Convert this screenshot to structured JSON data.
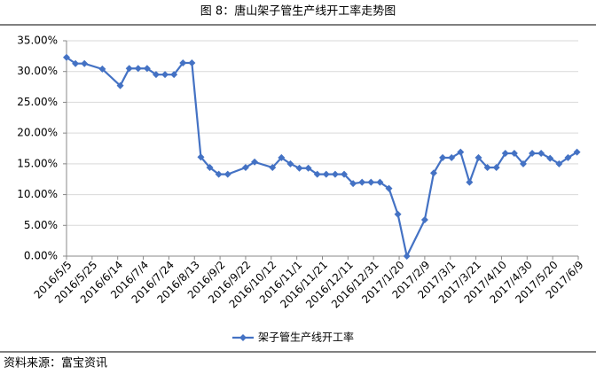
{
  "chart_data": {
    "type": "line",
    "title": "图 8：唐山架子管生产线开工率走势图",
    "source": "资料来源：富宝资讯",
    "x": [
      "2016/5/5",
      "2016/5/12",
      "2016/5/19",
      "2016/6/2",
      "2016/6/16",
      "2016/6/23",
      "2016/6/30",
      "2016/7/7",
      "2016/7/14",
      "2016/7/21",
      "2016/7/28",
      "2016/8/4",
      "2016/8/11",
      "2016/8/18",
      "2016/8/25",
      "2016/9/1",
      "2016/9/8",
      "2016/9/22",
      "2016/9/29",
      "2016/10/13",
      "2016/10/20",
      "2016/10/27",
      "2016/11/3",
      "2016/11/10",
      "2016/11/17",
      "2016/11/24",
      "2016/12/1",
      "2016/12/8",
      "2016/12/15",
      "2016/12/22",
      "2016/12/29",
      "2017/1/5",
      "2017/1/12",
      "2017/1/19",
      "2017/1/26",
      "2017/2/9",
      "2017/2/16",
      "2017/2/23",
      "2017/3/2",
      "2017/3/9",
      "2017/3/16",
      "2017/3/23",
      "2017/3/30",
      "2017/4/6",
      "2017/4/13",
      "2017/4/20",
      "2017/4/27",
      "2017/5/4",
      "2017/5/11",
      "2017/5/18",
      "2017/5/25",
      "2017/6/1",
      "2017/6/8"
    ],
    "series": [
      {
        "name": "架子管生产线开工率",
        "color": "#4472c4",
        "values": [
          32.3,
          31.3,
          31.3,
          30.4,
          27.7,
          30.5,
          30.5,
          30.5,
          29.5,
          29.5,
          29.5,
          31.4,
          31.4,
          16.1,
          14.4,
          13.3,
          13.3,
          14.4,
          15.3,
          14.4,
          16.0,
          15.0,
          14.3,
          14.3,
          13.3,
          13.3,
          13.3,
          13.3,
          11.8,
          12.0,
          12.0,
          12.0,
          11.0,
          6.8,
          0,
          5.9,
          13.5,
          16.0,
          16.0,
          16.9,
          12.0,
          16.0,
          14.4,
          14.4,
          16.7,
          16.7,
          15.0,
          16.7,
          16.7,
          15.9,
          15.0,
          16.0,
          16.9
        ]
      }
    ],
    "xlim": [
      "2016/5/5",
      "2017/6/9"
    ],
    "xticks": [
      "2016/5/5",
      "2016/5/25",
      "2016/6/14",
      "2016/7/4",
      "2016/7/24",
      "2016/8/13",
      "2016/9/2",
      "2016/9/22",
      "2016/10/12",
      "2016/11/1",
      "2016/11/21",
      "2016/12/11",
      "2016/12/31",
      "2017/1/20",
      "2017/2/9",
      "2017/3/1",
      "2017/3/21",
      "2017/4/10",
      "2017/4/30",
      "2017/5/20",
      "2017/6/9"
    ],
    "ylim": [
      0,
      35
    ],
    "yticks": [
      {
        "value": 0,
        "label": "0.00%"
      },
      {
        "value": 5,
        "label": "5.00%"
      },
      {
        "value": 10,
        "label": "10.00%"
      },
      {
        "value": 15,
        "label": "15.00%"
      },
      {
        "value": 20,
        "label": "20.00%"
      },
      {
        "value": 25,
        "label": "25.00%"
      },
      {
        "value": 30,
        "label": "30.00%"
      },
      {
        "value": 35,
        "label": "35.00%"
      }
    ],
    "grid": true
  }
}
